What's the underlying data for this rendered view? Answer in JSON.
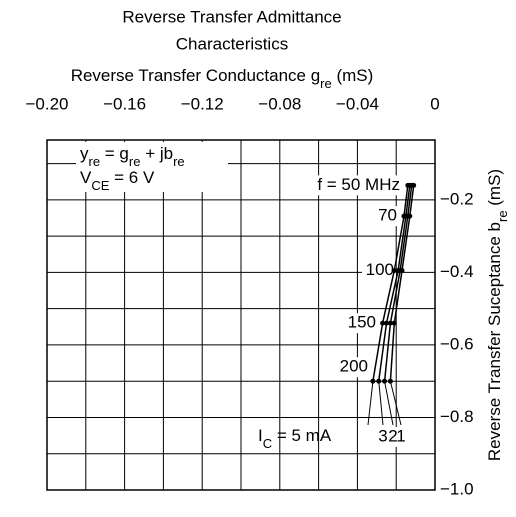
{
  "chart_data": {
    "type": "line",
    "title": [
      "Reverse Transfer Admittance",
      "Characteristics"
    ],
    "x_label": [
      "Reverse Transfer Conductance  g",
      "re",
      "  (mS)"
    ],
    "y_label": [
      "Reverse Transfer Suceptance  b",
      "re",
      "  (mS)"
    ],
    "xlim": [
      -0.2,
      0
    ],
    "ylim": [
      -1.0,
      -0.035
    ],
    "xticks": [
      {
        "value": -0.2,
        "label": "−0.20"
      },
      {
        "value": -0.16,
        "label": "−0.16"
      },
      {
        "value": -0.12,
        "label": "−0.12"
      },
      {
        "value": -0.08,
        "label": "−0.08"
      },
      {
        "value": -0.04,
        "label": "−0.04"
      },
      0
    ],
    "xgrid": [
      -0.18,
      -0.14,
      -0.1,
      -0.06,
      -0.02
    ],
    "yticks": [
      {
        "value": -0.2,
        "label": "−0.2"
      },
      {
        "value": -0.4,
        "label": "−0.4"
      },
      {
        "value": -0.6,
        "label": "−0.6"
      },
      {
        "value": -0.8,
        "label": "−0.8"
      },
      {
        "value": -1.0,
        "label": "−1.0"
      }
    ],
    "ygrid": [
      -0.1,
      -0.3,
      -0.5,
      -0.7,
      -0.9
    ],
    "grid": true,
    "annotations": [
      [
        "y",
        "re",
        " = g",
        "re",
        " + jb",
        "re"
      ],
      [
        "V",
        "CE",
        " = 6 V"
      ]
    ],
    "frequency_labels": [
      "f = 50 MHz",
      "70",
      "100",
      "150",
      "200"
    ],
    "current_label": [
      "I",
      "C",
      " = "
    ],
    "series": [
      {
        "name": "5 mA",
        "color": "#000000",
        "x": [
          -0.014,
          -0.016,
          -0.021,
          -0.027,
          -0.032
        ],
        "values": [
          -0.16,
          -0.245,
          -0.395,
          -0.54,
          -0.7
        ]
      },
      {
        "name": "3",
        "color": "#000000",
        "x": [
          -0.013,
          -0.015,
          -0.019,
          -0.025,
          -0.029
        ],
        "values": [
          -0.16,
          -0.245,
          -0.395,
          -0.54,
          -0.7
        ]
      },
      {
        "name": "2",
        "color": "#000000",
        "x": [
          -0.012,
          -0.014,
          -0.018,
          -0.023,
          -0.026
        ],
        "values": [
          -0.16,
          -0.245,
          -0.395,
          -0.54,
          -0.7
        ]
      },
      {
        "name": "1",
        "color": "#000000",
        "x": [
          -0.011,
          -0.013,
          -0.017,
          -0.021,
          -0.023
        ],
        "values": [
          -0.16,
          -0.245,
          -0.395,
          -0.54,
          -0.7
        ]
      }
    ]
  }
}
